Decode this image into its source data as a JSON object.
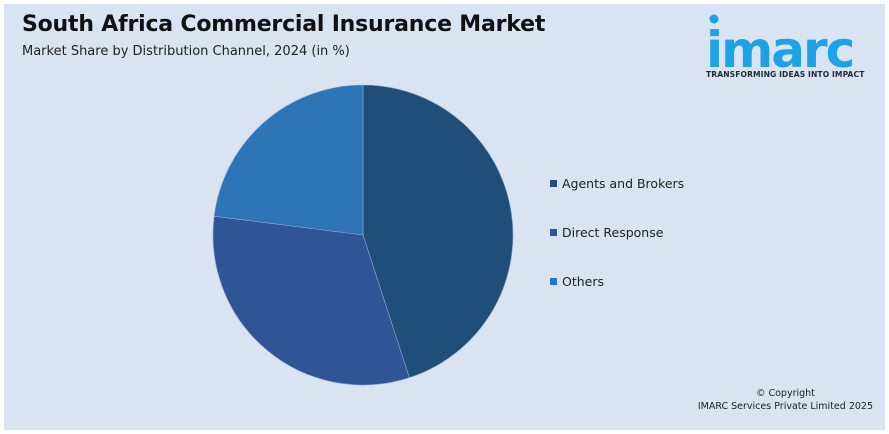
{
  "header": {
    "title": "South Africa Commercial Insurance Market",
    "subtitle": "Market Share by Distribution Channel, 2024 (in %)"
  },
  "logo": {
    "wordmark": "imarc",
    "tagline": "TRANSFORMING IDEAS INTO IMPACT",
    "color": "#1ea2e6"
  },
  "footer": {
    "copyright_line1": "© Copyright",
    "copyright_line2": "IMARC Services Private Limited 2025"
  },
  "legend": {
    "items": [
      {
        "label": "Agents and Brokers",
        "color": "#1f4e79"
      },
      {
        "label": "Direct Response",
        "color": "#2f5597"
      },
      {
        "label": "Others",
        "color": "#2e75b6"
      }
    ]
  },
  "chart_data": {
    "type": "pie",
    "title": "South Africa Commercial Insurance Market",
    "subtitle": "Market Share by Distribution Channel, 2024 (in %)",
    "categories": [
      "Agents and Brokers",
      "Direct Response",
      "Others"
    ],
    "values": [
      45,
      32,
      23
    ],
    "colors": [
      "#1f4e79",
      "#2f5597",
      "#2e75b6"
    ],
    "start_angle_deg": 0,
    "direction": "clockwise",
    "data_labels": false,
    "legend_position": "right"
  }
}
